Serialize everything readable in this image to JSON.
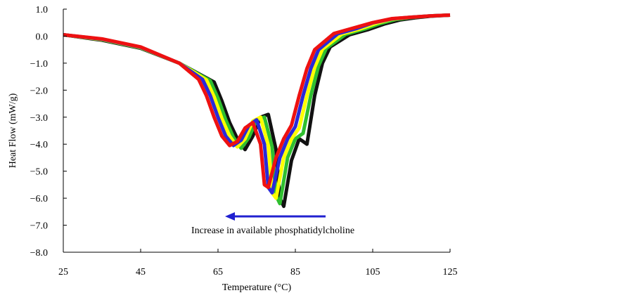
{
  "chart_data": {
    "type": "line",
    "x_label": "Temperature (°C)",
    "y_label": "Heat Flow (mW/g)",
    "annotation": "Increase in available phosphatidylcholine",
    "xlim": [
      25,
      125
    ],
    "xticks": [
      25,
      45,
      65,
      85,
      105,
      125
    ],
    "ylim": [
      -8,
      1
    ],
    "yticks": [
      {
        "value": 1,
        "label": "1.0"
      },
      {
        "value": 0,
        "label": "0.0"
      },
      {
        "value": -1,
        "label": "−1.0"
      },
      {
        "value": -2,
        "label": "−2.0"
      },
      {
        "value": -3,
        "label": "−3.0"
      },
      {
        "value": -4,
        "label": "−4.0"
      },
      {
        "value": -5,
        "label": "−5.0"
      },
      {
        "value": -6,
        "label": "−6.0"
      },
      {
        "value": -7,
        "label": "−7.0"
      },
      {
        "value": -8,
        "label": "−8.0"
      }
    ],
    "series": [
      {
        "color": "#111111",
        "x": [
          25,
          35,
          45,
          55,
          64,
          66,
          68,
          70,
          72,
          74,
          76,
          78,
          80,
          81,
          82,
          84,
          86,
          88,
          90,
          92,
          94,
          99,
          104,
          108,
          112,
          116,
          120,
          125
        ],
        "values": [
          0.05,
          -0.15,
          -0.45,
          -1.0,
          -1.7,
          -2.4,
          -3.2,
          -3.8,
          -4.2,
          -3.7,
          -3.0,
          -2.9,
          -4.2,
          -6.0,
          -6.3,
          -4.6,
          -3.8,
          -4.0,
          -2.2,
          -1.0,
          -0.4,
          0.05,
          0.25,
          0.45,
          0.6,
          0.68,
          0.74,
          0.78
        ]
      },
      {
        "color": "#2fbf2f",
        "x": [
          25,
          35,
          45,
          55,
          63,
          65,
          67,
          69,
          71,
          73,
          75,
          77,
          79,
          80,
          81,
          83,
          85,
          87,
          89,
          91,
          93,
          98,
          103,
          107,
          111,
          115,
          120,
          125
        ],
        "values": [
          0.05,
          -0.13,
          -0.43,
          -1.0,
          -1.65,
          -2.3,
          -3.1,
          -3.75,
          -4.15,
          -3.75,
          -3.1,
          -3.0,
          -4.1,
          -5.9,
          -6.2,
          -4.5,
          -3.8,
          -3.6,
          -2.2,
          -1.1,
          -0.45,
          0.07,
          0.27,
          0.47,
          0.62,
          0.69,
          0.75,
          0.78
        ]
      },
      {
        "color": "#ffff00",
        "x": [
          25,
          35,
          45,
          55,
          62,
          64,
          66,
          68,
          70,
          72,
          74,
          76,
          78,
          79,
          80,
          82,
          84,
          86,
          88,
          90,
          92,
          97,
          102,
          106,
          110,
          115,
          120,
          125
        ],
        "values": [
          0.05,
          -0.12,
          -0.42,
          -1.0,
          -1.62,
          -2.25,
          -3.05,
          -3.7,
          -4.1,
          -3.8,
          -3.15,
          -3.0,
          -4.05,
          -5.8,
          -6.0,
          -4.5,
          -3.8,
          -3.4,
          -2.2,
          -1.15,
          -0.48,
          0.08,
          0.28,
          0.48,
          0.63,
          0.7,
          0.75,
          0.78
        ]
      },
      {
        "color": "#2a2ad8",
        "x": [
          25,
          35,
          45,
          55,
          61,
          63,
          65,
          67,
          69,
          71,
          73,
          75,
          77,
          78,
          79,
          81,
          83,
          85,
          87,
          89,
          91,
          96,
          101,
          105,
          110,
          115,
          120,
          125
        ],
        "values": [
          0.05,
          -0.11,
          -0.41,
          -1.0,
          -1.6,
          -2.2,
          -3.0,
          -3.7,
          -4.05,
          -3.85,
          -3.3,
          -3.1,
          -4.0,
          -5.6,
          -5.8,
          -4.5,
          -3.8,
          -3.35,
          -2.2,
          -1.2,
          -0.5,
          0.09,
          0.29,
          0.49,
          0.64,
          0.7,
          0.75,
          0.78
        ]
      },
      {
        "color": "#ee1111",
        "x": [
          25,
          35,
          45,
          55,
          60,
          62,
          64,
          66,
          68,
          70,
          72,
          74,
          76,
          77,
          78,
          80,
          82,
          84,
          86,
          88,
          90,
          95,
          100,
          105,
          110,
          115,
          120,
          125
        ],
        "values": [
          0.05,
          -0.1,
          -0.4,
          -1.0,
          -1.6,
          -2.2,
          -3.0,
          -3.7,
          -4.05,
          -3.9,
          -3.4,
          -3.2,
          -4.0,
          -5.5,
          -5.6,
          -4.5,
          -3.8,
          -3.3,
          -2.2,
          -1.2,
          -0.5,
          0.1,
          0.3,
          0.5,
          0.65,
          0.7,
          0.75,
          0.78
        ]
      }
    ]
  }
}
